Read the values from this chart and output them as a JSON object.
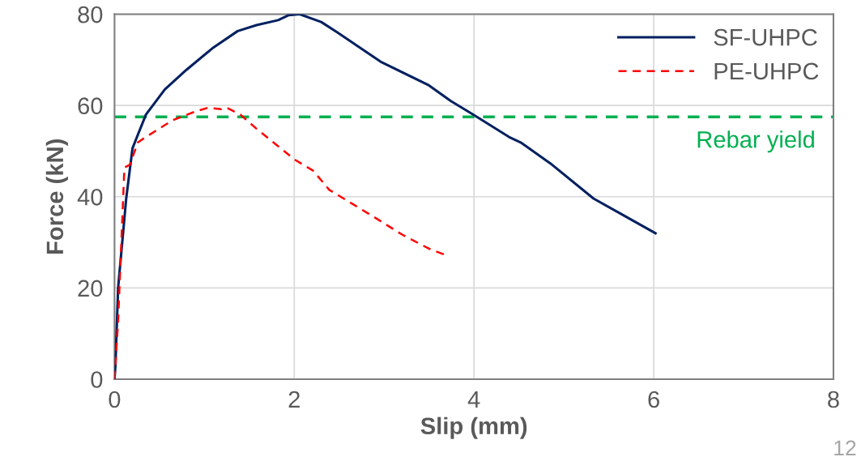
{
  "chart_data": {
    "type": "line",
    "xlabel": "Slip (mm)",
    "ylabel": "Force (kN)",
    "xlim": [
      0,
      8
    ],
    "xticks": [
      0,
      2,
      4,
      6,
      8
    ],
    "ylim": [
      0,
      80
    ],
    "yticks": [
      0,
      20,
      40,
      60,
      80
    ],
    "grid": true,
    "legend": "top right",
    "series": [
      {
        "name": "SF-UHPC",
        "color": "#002060",
        "line_style": "solid",
        "x": [
          0,
          0.01,
          0.04,
          0.13,
          0.2,
          0.25,
          0.35,
          0.56,
          0.8,
          1.1,
          1.37,
          1.58,
          1.82,
          1.94,
          2.06,
          2.3,
          2.48,
          2.96,
          3.5,
          3.74,
          4.0,
          4.39,
          4.52,
          4.85,
          5.33,
          5.63,
          6.02
        ],
        "values": [
          0,
          2.9,
          20,
          39.6,
          50.6,
          53.1,
          58,
          63.5,
          67.8,
          72.7,
          76.3,
          77.6,
          78.7,
          79.8,
          80,
          78.3,
          76,
          69.6,
          64.4,
          61,
          57.9,
          53.1,
          51.9,
          47.3,
          39.6,
          36.3,
          32
        ]
      },
      {
        "name": "PE-UHPC",
        "color": "#ff0000",
        "line_style": "dashed",
        "x": [
          0,
          0.04,
          0.11,
          0.17,
          0.26,
          0.35,
          0.65,
          0.89,
          1.04,
          1.19,
          1.25,
          1.4,
          1.58,
          2.0,
          2.21,
          2.39,
          2.6,
          2.9,
          3.2,
          3.5,
          3.7
        ],
        "values": [
          0,
          12.7,
          46.4,
          47,
          51.9,
          53.1,
          56.8,
          58.6,
          59.5,
          59.2,
          59.5,
          58,
          54.9,
          48.2,
          45.7,
          41.5,
          39,
          35.4,
          31.7,
          28.6,
          27.1
        ]
      }
    ],
    "ref_lines": [
      {
        "axis": "y",
        "value": 57.5,
        "label": "Rebar yield",
        "color": "#00b050",
        "line_style": "dashed"
      }
    ],
    "annotations": [
      "12"
    ]
  }
}
